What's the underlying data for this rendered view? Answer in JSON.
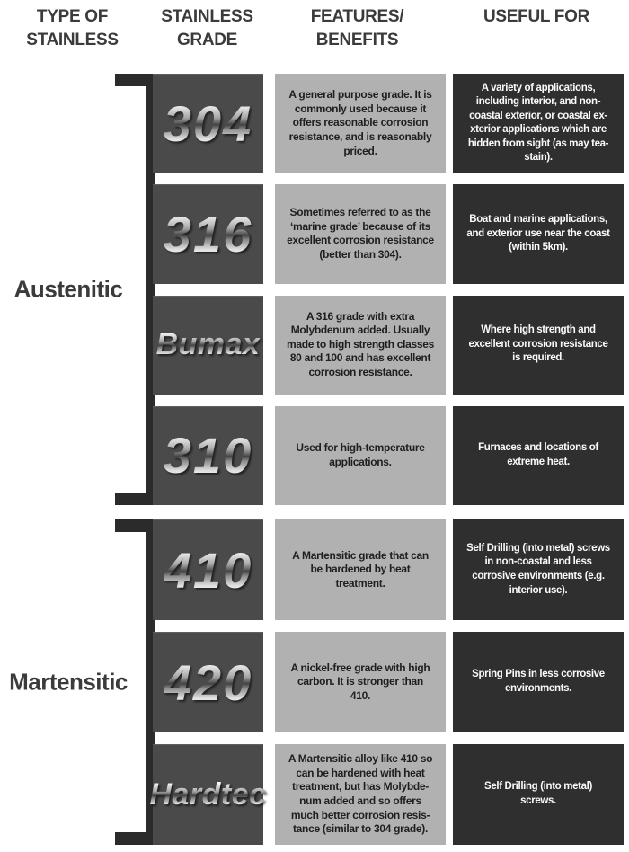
{
  "title": "Stainless steel types, grades, features and uses comparison table",
  "colors": {
    "background": "#ffffff",
    "header_text": "#3b3b3b",
    "type_label_text": "#3b3b3b",
    "bracket": "#2b2b2b",
    "grade_box": "#4a4a4a",
    "features_box": "#b1b1b1",
    "features_text": "#1f1f1f",
    "useful_box": "#2f2f2f",
    "useful_text": "#fafafa",
    "grade_lettering": "metallic-chrome-gradient"
  },
  "headers": {
    "type": "TYPE OF\nSTAINLESS",
    "grade": "STAINLESS\nGRADE",
    "features": "FEATURES/\nBENEFITS",
    "useful": "USEFUL FOR"
  },
  "sections": [
    {
      "type": "Austenitic",
      "rows": [
        {
          "grade": "304",
          "features": "A general purpose grade. It is\ncommonly used because it\noffers reasonable corrosion\nresistance, and is reasonably\npriced.",
          "useful": "A variety of applications,\nincluding interior, and non-\ncoastal exterior, or coastal ex-\nxterior applications which are\nhidden from sight (as may tea-\nstain)."
        },
        {
          "grade": "316",
          "features": "Sometimes referred to as the\n‘marine grade’ because of its\nexcellent corrosion resistance\n(better than 304).",
          "useful": "Boat and marine applications,\nand exterior use near the coast\n(within 5km)."
        },
        {
          "grade": "Bumax",
          "features": "A 316 grade with extra\nMolybdenum added. Usually\nmade to high strength classes\n80 and 100 and has excellent\ncorrosion resistance.",
          "useful": "Where high strength and\nexcellent corrosion resistance\nis required."
        },
        {
          "grade": "310",
          "features": "Used for high-temperature\napplications.",
          "useful": "Furnaces and locations of\nextreme heat."
        }
      ]
    },
    {
      "type": "Martensitic",
      "rows": [
        {
          "grade": "410",
          "features": "A Martensitic grade that can\nbe hardened by heat\ntreatment.",
          "useful": "Self Drilling (into metal) screws\nin non-coastal and less\ncorrosive environments (e.g.\ninterior use)."
        },
        {
          "grade": "420",
          "features": "A nickel-free grade with high\ncarbon. It is stronger than\n410.",
          "useful": "Spring Pins in less corrosive\nenvironments."
        },
        {
          "grade": "Hardtec",
          "features": "A Martensitic alloy like 410 so\ncan be hardened with heat\ntreatment, but has Molybde-\nnum added and so offers\nmuch better corrosion resis-\ntance (similar to 304 grade).",
          "useful": "Self Drilling (into metal)\nscrews."
        }
      ]
    }
  ]
}
